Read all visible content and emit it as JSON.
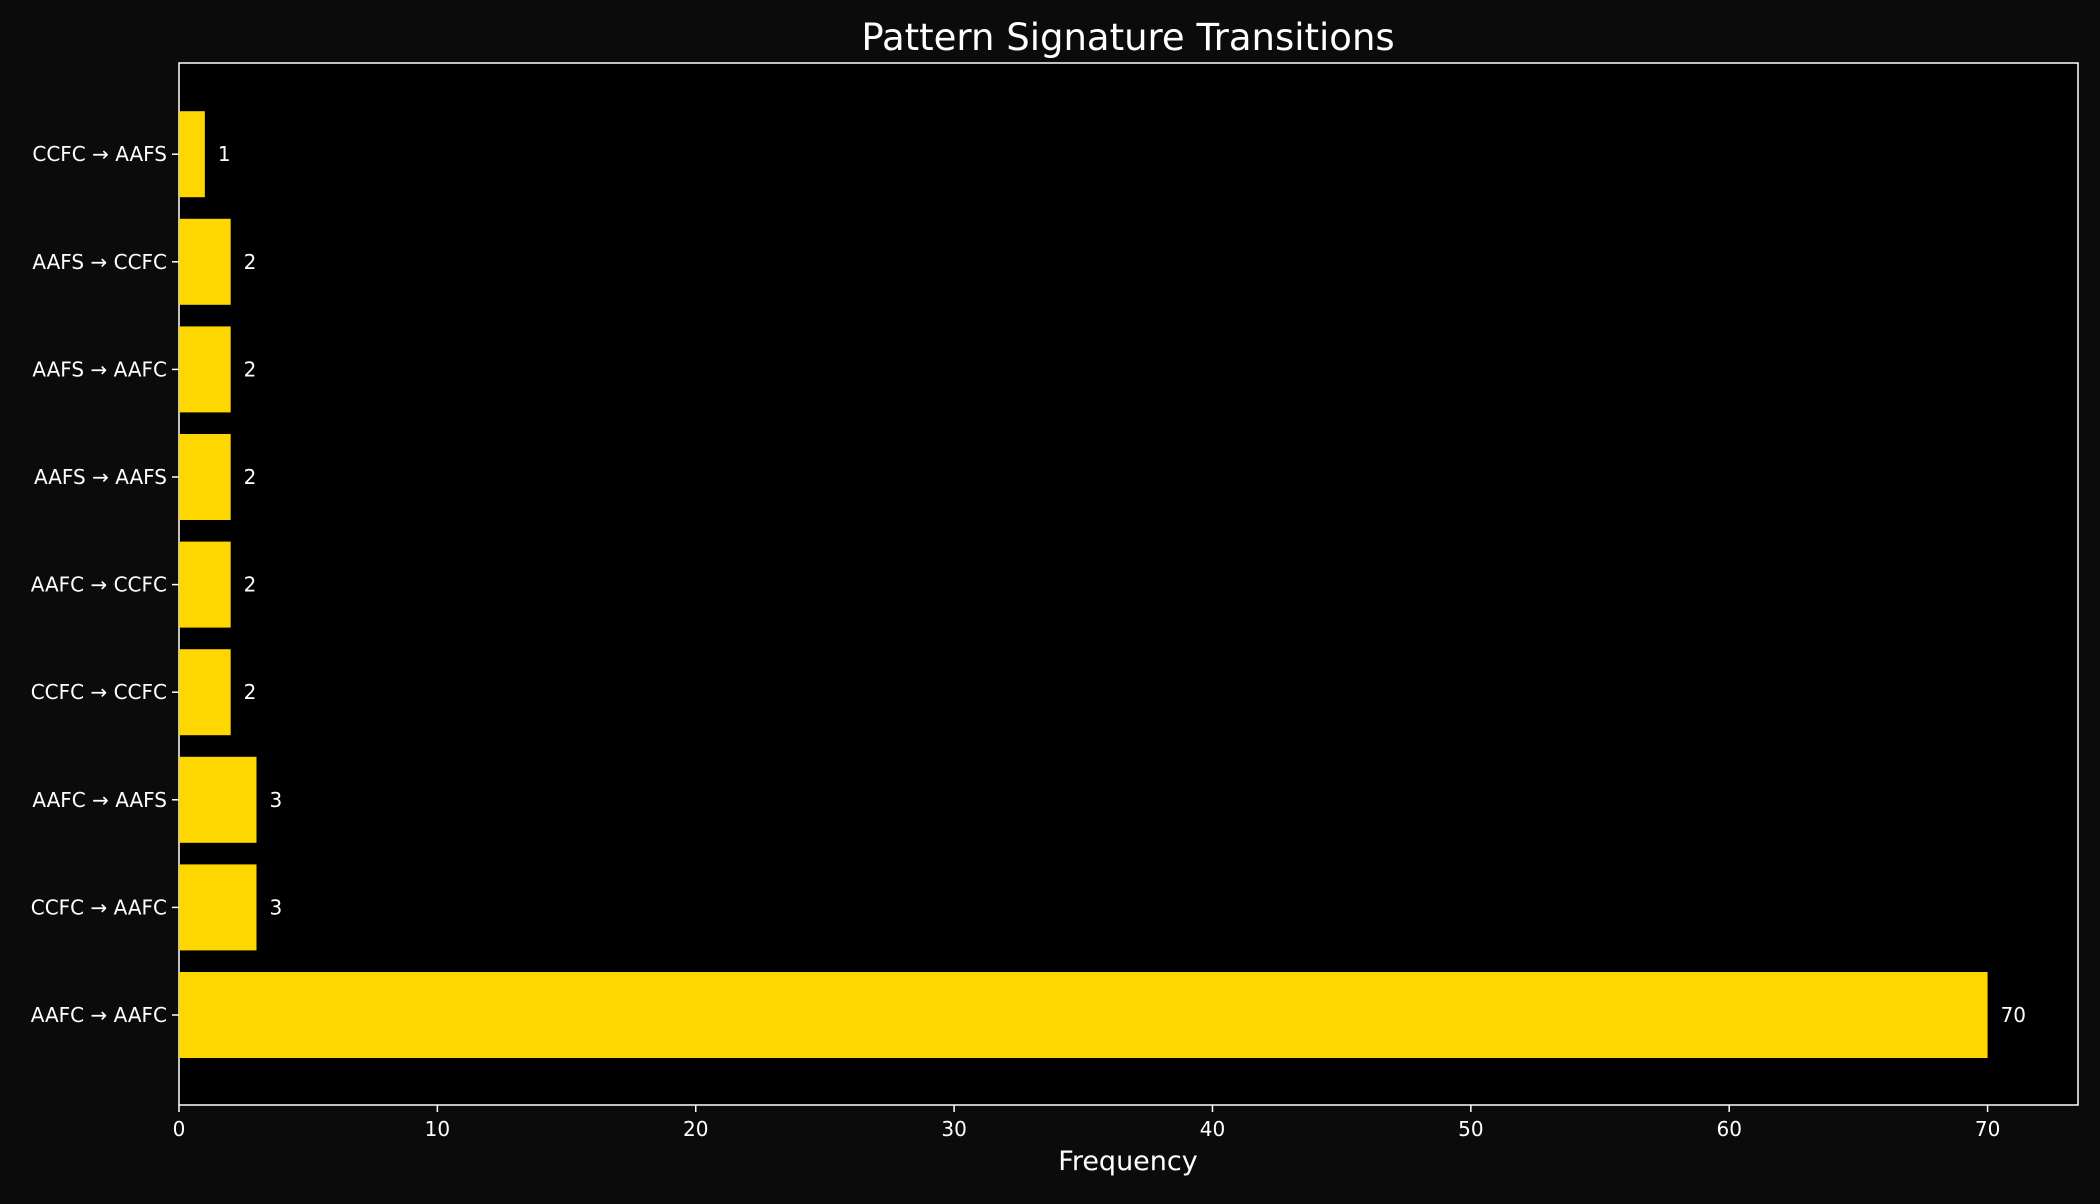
{
  "chart_data": {
    "type": "bar",
    "orientation": "horizontal",
    "title": "Pattern Signature Transitions",
    "xlabel": "Frequency",
    "ylabel": "",
    "categories": [
      "AAFC → AAFC",
      "CCFC → AAFC",
      "AAFC → AAFS",
      "CCFC → CCFC",
      "AAFC → CCFC",
      "AAFS → AAFS",
      "AAFS → AAFC",
      "AAFS → CCFC",
      "CCFC → AAFS"
    ],
    "values": [
      70,
      3,
      3,
      2,
      2,
      2,
      2,
      2,
      1
    ],
    "data_labels": [
      "70",
      "3",
      "3",
      "2",
      "2",
      "2",
      "2",
      "2",
      "1"
    ],
    "xlim": [
      0,
      73.5
    ],
    "xticks": [
      0,
      10,
      20,
      30,
      40,
      50,
      60,
      70
    ],
    "grid": false,
    "legend": "none",
    "colors": {
      "bar": "#FFD700",
      "plot_background": "#000000",
      "figure_background": "#0b0b0b",
      "text": "#ffffff",
      "axes": "#ffffff"
    }
  }
}
